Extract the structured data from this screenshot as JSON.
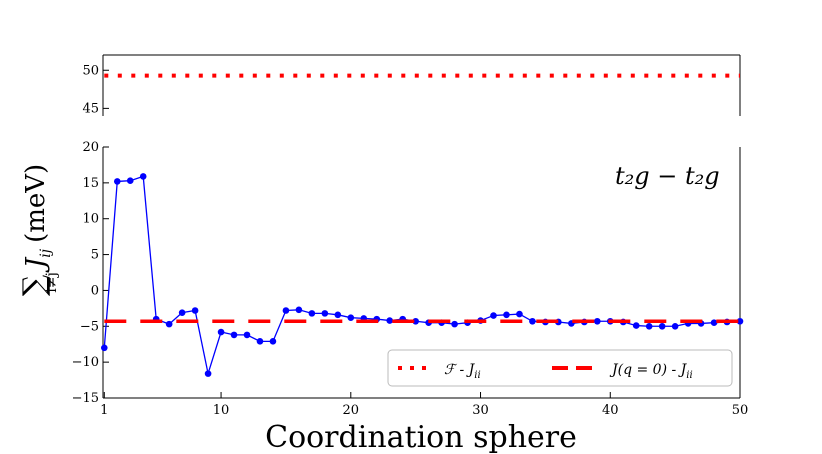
{
  "chart_data": {
    "type": "line",
    "xlabel": "Coordination sphere",
    "ylabel": "∑ J_ij (meV)",
    "ylabel_sum": "∑",
    "ylabel_sub": "i≠j",
    "ylabel_J": "J",
    "ylabel_J_sub": "ij",
    "ylabel_unit": "(meV)",
    "annotation": "t₂g − t₂g",
    "xlim": [
      0.9,
      50
    ],
    "upper_ylim": [
      44,
      52
    ],
    "lower_ylim": [
      -15,
      20
    ],
    "x_ticks": [
      1,
      10,
      20,
      30,
      40,
      50
    ],
    "upper_y_ticks": [
      45,
      50
    ],
    "lower_y_ticks": [
      -15,
      -10,
      -5,
      0,
      5,
      10,
      15,
      20
    ],
    "series": [
      {
        "name": "sum_Jij",
        "color": "#0000ff",
        "style": "line-with-markers",
        "x": [
          1,
          2,
          3,
          4,
          5,
          6,
          7,
          8,
          9,
          10,
          11,
          12,
          13,
          14,
          15,
          16,
          17,
          18,
          19,
          20,
          21,
          22,
          23,
          24,
          25,
          26,
          27,
          28,
          29,
          30,
          31,
          32,
          33,
          34,
          35,
          36,
          37,
          38,
          39,
          40,
          41,
          42,
          43,
          44,
          45,
          46,
          47,
          48,
          49,
          50
        ],
        "y": [
          -8.0,
          15.2,
          15.3,
          15.9,
          -4.0,
          -4.7,
          -3.1,
          -2.8,
          -11.6,
          -5.8,
          -6.2,
          -6.2,
          -7.1,
          -7.1,
          -2.8,
          -2.7,
          -3.2,
          -3.2,
          -3.4,
          -3.8,
          -3.9,
          -4.0,
          -4.2,
          -4.0,
          -4.3,
          -4.5,
          -4.5,
          -4.7,
          -4.5,
          -4.2,
          -3.5,
          -3.4,
          -3.3,
          -4.3,
          -4.4,
          -4.4,
          -4.6,
          -4.4,
          -4.3,
          -4.3,
          -4.4,
          -4.9,
          -5.0,
          -5.0,
          -5.0,
          -4.6,
          -4.6,
          -4.5,
          -4.4,
          -4.3
        ]
      },
      {
        "name": "J(q=0) - J_ii",
        "color": "#ff0000",
        "style": "dashed",
        "constant": -4.3,
        "x_range": [
          1,
          50
        ]
      },
      {
        "name": "F - J_ii",
        "color": "#ff0000",
        "style": "dotted",
        "constant": 49.3,
        "x_range": [
          1,
          50
        ]
      }
    ],
    "legend": {
      "placement": "bottom-right",
      "entries": [
        {
          "label_main": "ℱ - J",
          "label_sub": "ii",
          "style": "dotted",
          "color": "#ff0000"
        },
        {
          "label_main": "J(q = 0) - J",
          "label_sub": "ii",
          "style": "dashed",
          "color": "#ff0000"
        }
      ]
    }
  }
}
